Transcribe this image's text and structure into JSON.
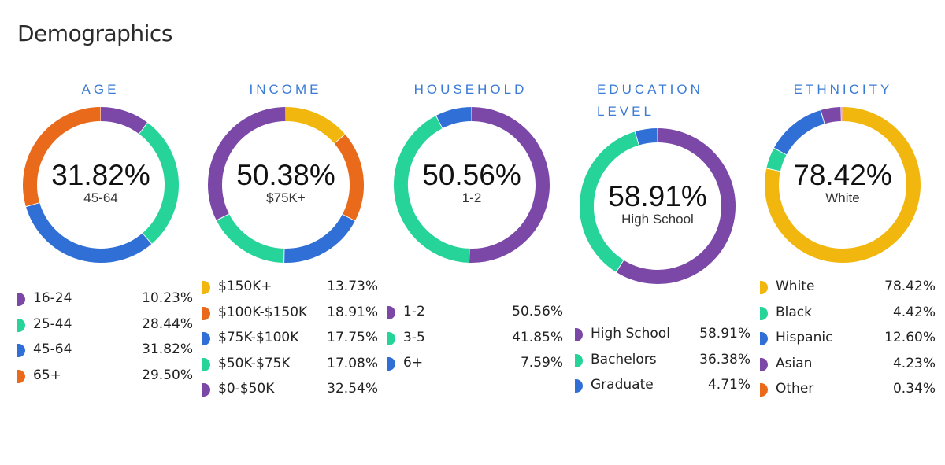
{
  "page": {
    "title": "Demographics"
  },
  "colors": {
    "purple": "#7b48a8",
    "green": "#26d49a",
    "blue": "#2f6fd6",
    "orange": "#ea6a1c",
    "yellow": "#f2b70f",
    "title_blue": "#3a7bd5"
  },
  "chart_data": [
    {
      "type": "donut",
      "title": "AGE",
      "center_value": "31.82%",
      "center_label": "45-64",
      "series": [
        {
          "name": "16-24",
          "value": 10.23,
          "pct": "10.23%",
          "color": "#7b48a8"
        },
        {
          "name": "25-44",
          "value": 28.44,
          "pct": "28.44%",
          "color": "#26d49a"
        },
        {
          "name": "45-64",
          "value": 31.82,
          "pct": "31.82%",
          "color": "#2f6fd6"
        },
        {
          "name": "65+",
          "value": 29.5,
          "pct": "29.50%",
          "color": "#ea6a1c"
        }
      ]
    },
    {
      "type": "donut",
      "title": "INCOME",
      "center_value": "50.38%",
      "center_label": "$75K+",
      "series": [
        {
          "name": "$150K+",
          "value": 13.73,
          "pct": "13.73%",
          "color": "#f2b70f"
        },
        {
          "name": "$100K-$150K",
          "value": 18.91,
          "pct": "18.91%",
          "color": "#ea6a1c"
        },
        {
          "name": "$75K-$100K",
          "value": 17.75,
          "pct": "17.75%",
          "color": "#2f6fd6"
        },
        {
          "name": "$50K-$75K",
          "value": 17.08,
          "pct": "17.08%",
          "color": "#26d49a"
        },
        {
          "name": "$0-$50K",
          "value": 32.54,
          "pct": "32.54%",
          "color": "#7b48a8"
        }
      ]
    },
    {
      "type": "donut",
      "title": "HOUSEHOLD",
      "center_value": "50.56%",
      "center_label": "1-2",
      "series": [
        {
          "name": "1-2",
          "value": 50.56,
          "pct": "50.56%",
          "color": "#7b48a8"
        },
        {
          "name": "3-5",
          "value": 41.85,
          "pct": "41.85%",
          "color": "#26d49a"
        },
        {
          "name": "6+",
          "value": 7.59,
          "pct": "7.59%",
          "color": "#2f6fd6"
        }
      ]
    },
    {
      "type": "donut",
      "title": "EDUCATION LEVEL",
      "center_value": "58.91%",
      "center_label": "High School",
      "series": [
        {
          "name": "High School",
          "value": 58.91,
          "pct": "58.91%",
          "color": "#7b48a8"
        },
        {
          "name": "Bachelors",
          "value": 36.38,
          "pct": "36.38%",
          "color": "#26d49a"
        },
        {
          "name": "Graduate",
          "value": 4.71,
          "pct": "4.71%",
          "color": "#2f6fd6"
        }
      ]
    },
    {
      "type": "donut",
      "title": "ETHNICITY",
      "center_value": "78.42%",
      "center_label": "White",
      "series": [
        {
          "name": "White",
          "value": 78.42,
          "pct": "78.42%",
          "color": "#f2b70f"
        },
        {
          "name": "Black",
          "value": 4.42,
          "pct": "4.42%",
          "color": "#26d49a"
        },
        {
          "name": "Hispanic",
          "value": 12.6,
          "pct": "12.60%",
          "color": "#2f6fd6"
        },
        {
          "name": "Asian",
          "value": 4.23,
          "pct": "4.23%",
          "color": "#7b48a8"
        },
        {
          "name": "Other",
          "value": 0.34,
          "pct": "0.34%",
          "color": "#ea6a1c"
        }
      ]
    }
  ]
}
